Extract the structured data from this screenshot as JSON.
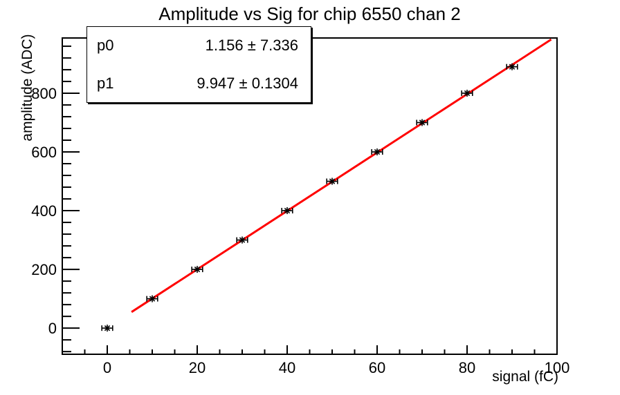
{
  "title": "Amplitude vs Sig for chip 6550 chan 2",
  "stats_box": {
    "rows": [
      {
        "label": "p0",
        "value": "1.156 ± 7.336"
      },
      {
        "label": "p1",
        "value": "9.947 ± 0.1304"
      }
    ]
  },
  "chart_data": {
    "type": "scatter",
    "title": "Amplitude vs Sig for chip 6550 chan 2",
    "xlabel": "signal (fC)",
    "ylabel": "amplitude (ADC)",
    "xlim": [
      -10,
      100
    ],
    "ylim": [
      -89,
      988
    ],
    "x_major_ticks": [
      0,
      20,
      40,
      60,
      80,
      100
    ],
    "x_minor_step": 5,
    "y_major_ticks": [
      0,
      200,
      400,
      600,
      800
    ],
    "y_minor_step": 40,
    "grid": false,
    "legend": "none",
    "marker": "asterisk",
    "marker_color": "#000000",
    "frame_color": "#000000",
    "background_color": "#ffffff",
    "points": {
      "x": [
        0,
        10,
        20,
        30,
        40,
        50,
        60,
        70,
        80,
        90
      ],
      "y": [
        0,
        100,
        200,
        300,
        400,
        500,
        600,
        700,
        800,
        890
      ],
      "xerr": 1.2
    },
    "fit": {
      "type": "linear",
      "p0": 1.156,
      "p0_err": 7.336,
      "p1": 9.947,
      "p1_err": 0.1304,
      "color": "#ff0000",
      "draw_range": [
        5.4,
        98.7
      ]
    }
  }
}
